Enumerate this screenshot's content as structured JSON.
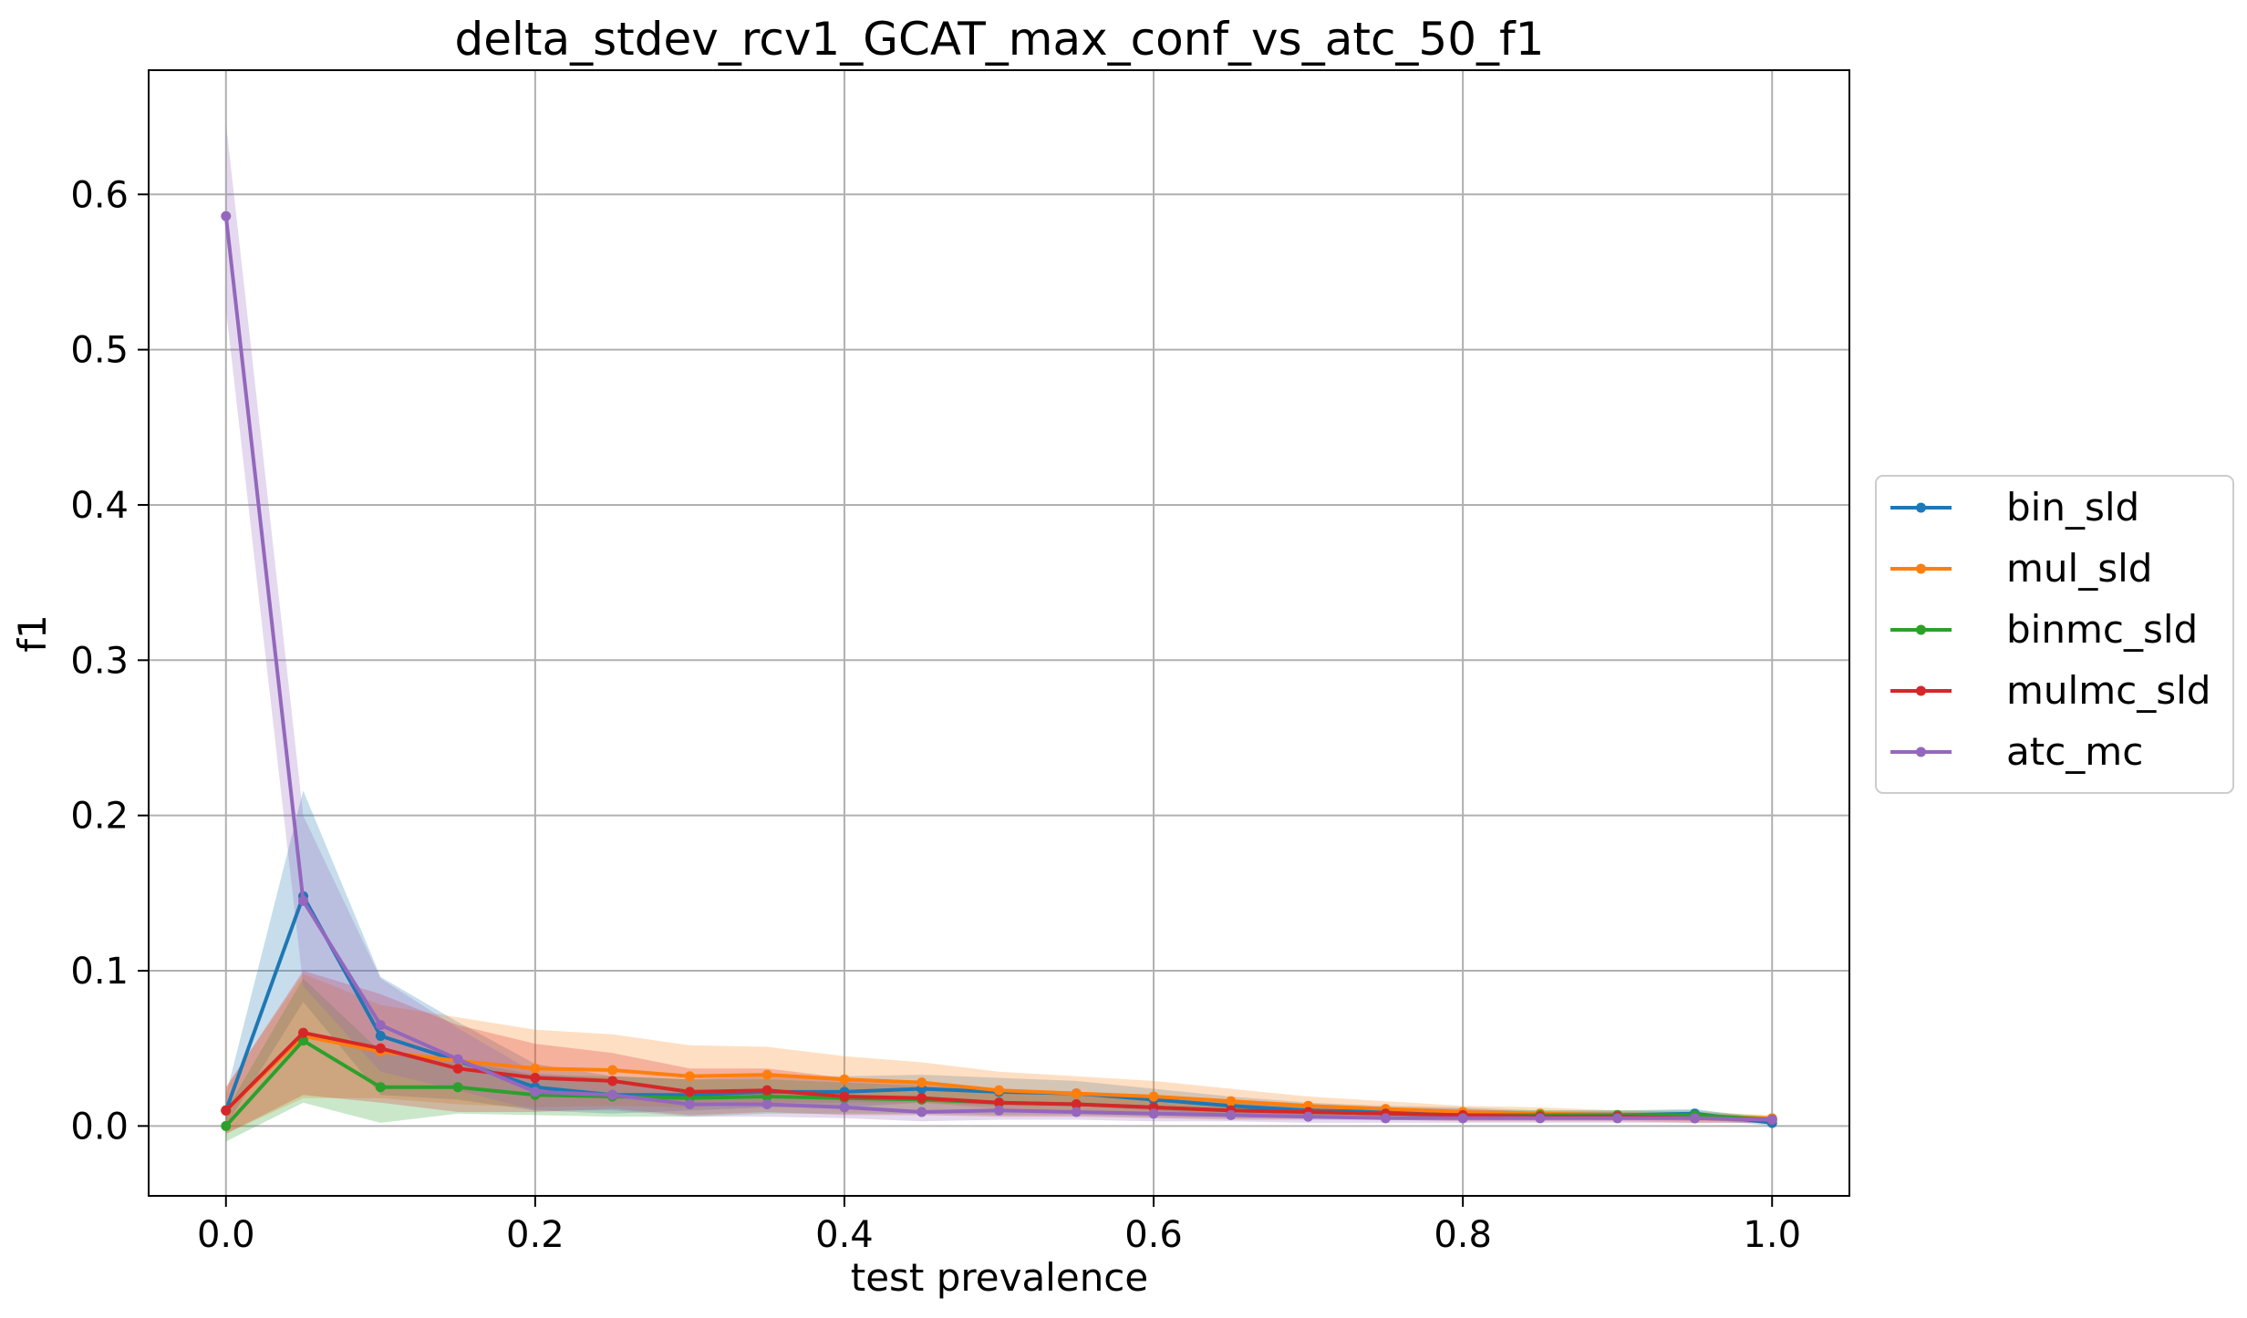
{
  "chart_data": {
    "type": "line",
    "title": "delta_stdev_rcv1_GCAT_max_conf_vs_atc_50_f1",
    "xlabel": "test prevalence",
    "ylabel": "f1",
    "xlim": [
      -0.05,
      1.05
    ],
    "ylim": [
      -0.045,
      0.68
    ],
    "grid": true,
    "legend_position": "right (outside plot)",
    "x": [
      0.0,
      0.05,
      0.1,
      0.15,
      0.2,
      0.25,
      0.3,
      0.35,
      0.4,
      0.45,
      0.5,
      0.55,
      0.6,
      0.65,
      0.7,
      0.75,
      0.8,
      0.85,
      0.9,
      0.95,
      1.0
    ],
    "xticks": [
      0.0,
      0.2,
      0.4,
      0.6,
      0.8,
      1.0
    ],
    "xtick_labels": [
      "0.0",
      "0.2",
      "0.4",
      "0.6",
      "0.8",
      "1.0"
    ],
    "yticks": [
      0.0,
      0.1,
      0.2,
      0.3,
      0.4,
      0.5,
      0.6
    ],
    "ytick_labels": [
      "0.0",
      "0.1",
      "0.2",
      "0.3",
      "0.4",
      "0.5",
      "0.6"
    ],
    "series": [
      {
        "name": "bin_sld",
        "color": "#1f77b4",
        "values": [
          0.01,
          0.148,
          0.058,
          0.042,
          0.025,
          0.02,
          0.02,
          0.022,
          0.022,
          0.024,
          0.022,
          0.021,
          0.017,
          0.013,
          0.01,
          0.009,
          0.008,
          0.007,
          0.007,
          0.008,
          0.002
        ],
        "spread": [
          0.01,
          0.068,
          0.038,
          0.025,
          0.015,
          0.012,
          0.01,
          0.01,
          0.01,
          0.009,
          0.009,
          0.008,
          0.007,
          0.006,
          0.005,
          0.004,
          0.004,
          0.003,
          0.003,
          0.003,
          0.002
        ]
      },
      {
        "name": "mul_sld",
        "color": "#ff7f0e",
        "values": [
          0.01,
          0.058,
          0.048,
          0.042,
          0.037,
          0.036,
          0.032,
          0.033,
          0.03,
          0.028,
          0.023,
          0.021,
          0.019,
          0.016,
          0.013,
          0.011,
          0.009,
          0.008,
          0.007,
          0.006,
          0.005
        ],
        "spread": [
          0.015,
          0.04,
          0.03,
          0.028,
          0.025,
          0.023,
          0.02,
          0.018,
          0.015,
          0.013,
          0.012,
          0.011,
          0.01,
          0.008,
          0.006,
          0.005,
          0.004,
          0.004,
          0.003,
          0.003,
          0.002
        ]
      },
      {
        "name": "binmc_sld",
        "color": "#2ca02c",
        "values": [
          0.0,
          0.055,
          0.025,
          0.025,
          0.02,
          0.019,
          0.018,
          0.019,
          0.018,
          0.017,
          0.015,
          0.014,
          0.012,
          0.01,
          0.009,
          0.008,
          0.007,
          0.007,
          0.007,
          0.007,
          0.004
        ],
        "spread": [
          0.01,
          0.04,
          0.023,
          0.017,
          0.013,
          0.013,
          0.012,
          0.011,
          0.01,
          0.009,
          0.008,
          0.007,
          0.006,
          0.005,
          0.004,
          0.004,
          0.003,
          0.003,
          0.003,
          0.003,
          0.002
        ]
      },
      {
        "name": "mulmc_sld",
        "color": "#d62728",
        "values": [
          0.01,
          0.06,
          0.05,
          0.037,
          0.031,
          0.029,
          0.022,
          0.023,
          0.019,
          0.018,
          0.015,
          0.014,
          0.012,
          0.01,
          0.009,
          0.008,
          0.007,
          0.006,
          0.006,
          0.005,
          0.004
        ],
        "spread": [
          0.015,
          0.04,
          0.035,
          0.028,
          0.022,
          0.018,
          0.015,
          0.014,
          0.012,
          0.011,
          0.009,
          0.008,
          0.007,
          0.006,
          0.005,
          0.004,
          0.004,
          0.003,
          0.003,
          0.003,
          0.002
        ]
      },
      {
        "name": "atc_mc",
        "color": "#9467bd",
        "values": [
          0.586,
          0.145,
          0.065,
          0.043,
          0.022,
          0.02,
          0.014,
          0.014,
          0.012,
          0.009,
          0.01,
          0.009,
          0.008,
          0.007,
          0.006,
          0.005,
          0.005,
          0.005,
          0.005,
          0.005,
          0.004
        ],
        "spread": [
          0.06,
          0.055,
          0.03,
          0.02,
          0.012,
          0.01,
          0.008,
          0.008,
          0.007,
          0.006,
          0.006,
          0.005,
          0.005,
          0.004,
          0.004,
          0.003,
          0.003,
          0.003,
          0.003,
          0.003,
          0.002
        ]
      }
    ]
  }
}
